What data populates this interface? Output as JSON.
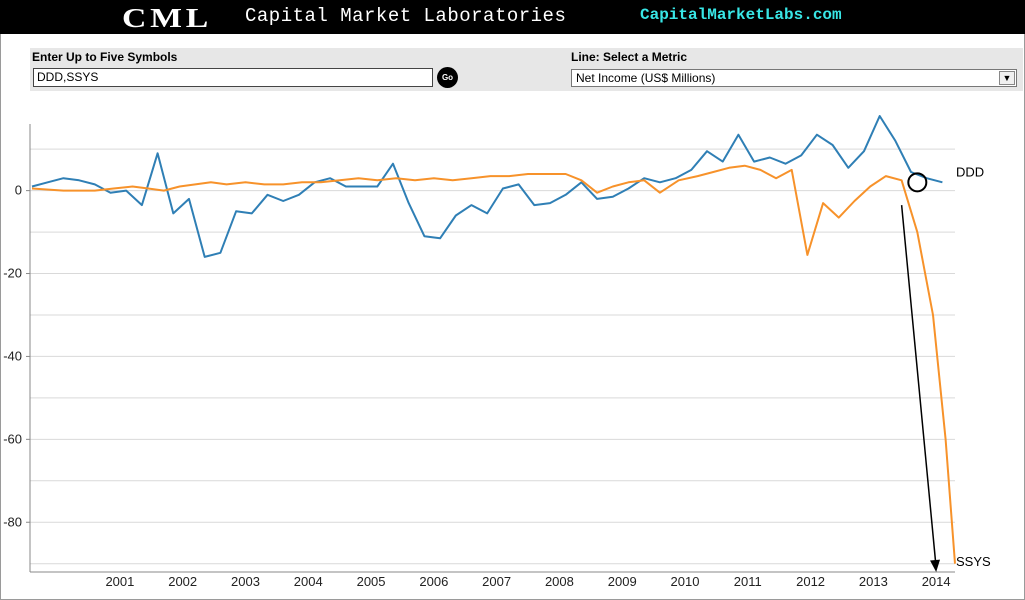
{
  "header": {
    "logo": "CML",
    "company": "Capital Market Laboratories",
    "site": "CapitalMarketLabs.com"
  },
  "controls": {
    "symbols_label": "Enter Up to Five Symbols",
    "symbols_value": "DDD,SSYS",
    "go_label": "Go",
    "metric_label": "Line: Select a Metric",
    "metric_value": "Net Income (US$ Millions)"
  },
  "colors": {
    "DDD": "#2f7fb5",
    "SSYS": "#f7922a",
    "grid": "#d9d9d9",
    "annotation": "#000000"
  },
  "icons": {
    "dropdown": "chevron-down-icon",
    "annotation_marker": "circle-marker-icon"
  },
  "chart_data": {
    "type": "line",
    "title": "",
    "xlabel": "",
    "ylabel": "",
    "xlim": [
      2000.0,
      2014.7
    ],
    "ylim": [
      -92,
      18
    ],
    "x_ticks": [
      "2001",
      "2002",
      "2003",
      "2004",
      "2005",
      "2006",
      "2007",
      "2008",
      "2009",
      "2010",
      "2011",
      "2012",
      "2013",
      "2014"
    ],
    "y_ticks": [
      "0",
      "-20",
      "-40",
      "-60",
      "-80"
    ],
    "grid": true,
    "series": [
      {
        "name": "DDD",
        "x": [
          2000.0,
          2000.25,
          2000.5,
          2000.75,
          2001.0,
          2001.25,
          2001.5,
          2001.75,
          2002.0,
          2002.25,
          2002.5,
          2002.75,
          2003.0,
          2003.25,
          2003.5,
          2003.75,
          2004.0,
          2004.25,
          2004.5,
          2004.75,
          2005.0,
          2005.25,
          2005.5,
          2005.75,
          2006.0,
          2006.25,
          2006.5,
          2006.75,
          2007.0,
          2007.25,
          2007.5,
          2007.75,
          2008.0,
          2008.25,
          2008.5,
          2008.75,
          2009.0,
          2009.25,
          2009.5,
          2009.75,
          2010.0,
          2010.25,
          2010.5,
          2010.75,
          2011.0,
          2011.25,
          2011.5,
          2011.75,
          2012.0,
          2012.25,
          2012.5,
          2012.75,
          2013.0,
          2013.25,
          2013.5,
          2013.75,
          2014.0,
          2014.25,
          2014.5
        ],
        "values": [
          1,
          2,
          3,
          2.5,
          1.5,
          -0.5,
          0,
          -3.5,
          9,
          -5.5,
          -2,
          -16,
          -15,
          -5,
          -5.5,
          -1,
          -2.5,
          -1,
          2,
          3,
          1,
          1,
          1,
          6.5,
          -3,
          -11,
          -11.5,
          -6,
          -3.5,
          -5.5,
          0.5,
          1.5,
          -3.5,
          -3,
          -1,
          2,
          -2,
          -1.5,
          0.5,
          3,
          2,
          3,
          5,
          9.5,
          7,
          13.5,
          7,
          8,
          6.5,
          8.5,
          13.5,
          11,
          5.5,
          9.5,
          18,
          12,
          4.5,
          3,
          2
        ]
      },
      {
        "name": "SSYS",
        "x": [
          2000.0,
          2000.5,
          2001.0,
          2001.3,
          2001.6,
          2001.85,
          2002.1,
          2002.35,
          2002.6,
          2002.85,
          2003.1,
          2003.4,
          2003.7,
          2004.0,
          2004.3,
          2004.6,
          2004.9,
          2005.2,
          2005.5,
          2005.8,
          2006.1,
          2006.4,
          2006.7,
          2007.0,
          2007.3,
          2007.6,
          2007.9,
          2008.2,
          2008.5,
          2008.75,
          2009.0,
          2009.25,
          2009.5,
          2009.75,
          2010.0,
          2010.3,
          2010.6,
          2010.85,
          2011.1,
          2011.35,
          2011.6,
          2011.85,
          2012.1,
          2012.35,
          2012.6,
          2012.85,
          2013.1,
          2013.35,
          2013.6,
          2013.85,
          2014.1,
          2014.35,
          2014.55,
          2014.7
        ],
        "values": [
          0.5,
          0,
          0,
          0.5,
          1,
          0.5,
          0,
          1,
          1.5,
          2,
          1.5,
          2,
          1.5,
          1.5,
          2,
          2,
          2.5,
          3,
          2.5,
          3,
          2.5,
          3,
          2.5,
          3,
          3.5,
          3.5,
          4,
          4,
          4,
          2.5,
          -0.5,
          1,
          2,
          2.5,
          -0.5,
          2.5,
          3.5,
          4.5,
          5.5,
          6,
          5,
          3,
          5,
          -15.5,
          -3,
          -6.5,
          -2.5,
          1,
          3.5,
          2.5,
          -10,
          -30,
          -60,
          -90
        ]
      }
    ],
    "end_labels": [
      "DDD",
      "SSYS"
    ],
    "annotations": [
      {
        "type": "circle",
        "x": 2014.1,
        "y": 2
      },
      {
        "type": "arrow",
        "from": [
          2013.85,
          -3.5
        ],
        "to": [
          2014.4,
          -92
        ]
      }
    ]
  }
}
